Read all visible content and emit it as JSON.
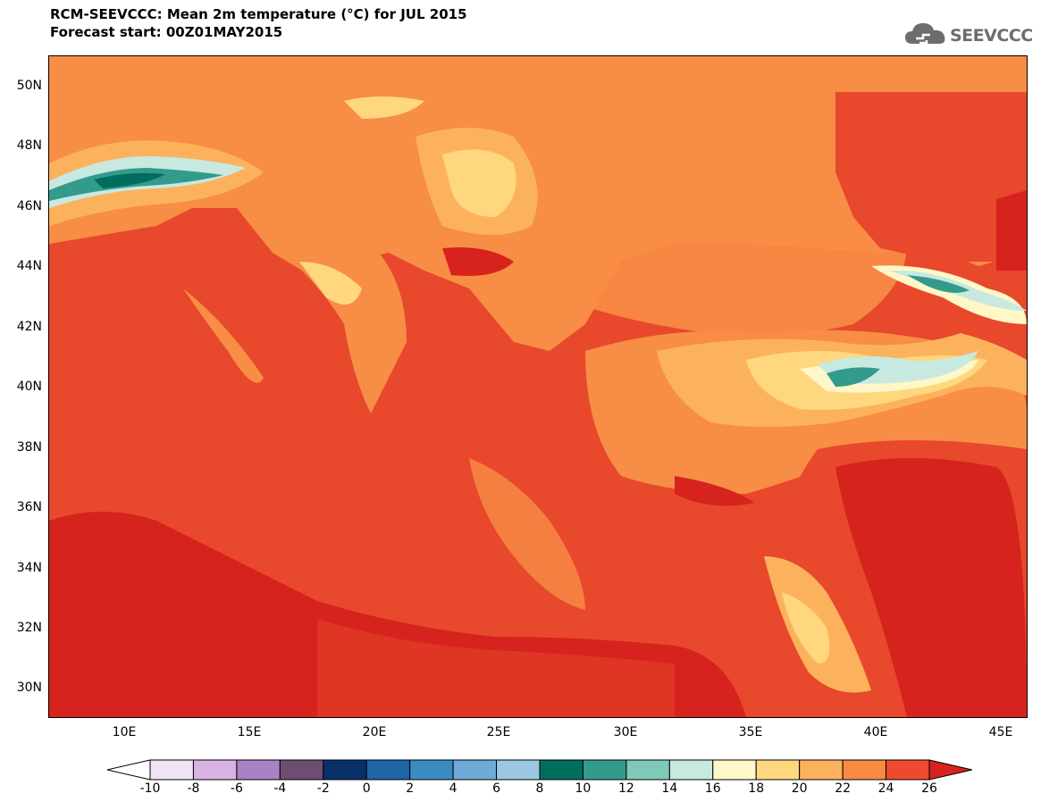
{
  "header": {
    "title_line1": "RCM-SEEVCCC: Mean 2m temperature (°C) for JUL 2015",
    "title_line2": "Forecast start: 00Z01MAY2015"
  },
  "logo": {
    "text": "SEEVCCC",
    "icon": "cloud-icon",
    "color": "#6d6d6d"
  },
  "map": {
    "lat_labels": [
      "50N",
      "48N",
      "46N",
      "44N",
      "42N",
      "40N",
      "38N",
      "36N",
      "34N",
      "32N",
      "30N"
    ],
    "lon_labels": [
      "10E",
      "15E",
      "20E",
      "25E",
      "30E",
      "35E",
      "40E",
      "45E"
    ],
    "sea_color": "#e8482c",
    "land_base_color": "#f88d46"
  },
  "colorbar": {
    "labels": [
      "-10",
      "-8",
      "-6",
      "-4",
      "-2",
      "0",
      "2",
      "4",
      "6",
      "8",
      "10",
      "12",
      "14",
      "16",
      "18",
      "20",
      "22",
      "24",
      "26"
    ],
    "colors": [
      "#efe3f4",
      "#d9b3e3",
      "#a882c4",
      "#6c4f70",
      "#083068",
      "#1f64a7",
      "#3b8bc3",
      "#70aad6",
      "#9bc7e2",
      "#006d5d",
      "#339b8c",
      "#7fc9b9",
      "#c7e9e0",
      "#fff7c7",
      "#fed77f",
      "#fcb25d",
      "#f98a41",
      "#ef4a2e"
    ],
    "under_color": "#ffffff",
    "over_color": "#d6231d"
  }
}
